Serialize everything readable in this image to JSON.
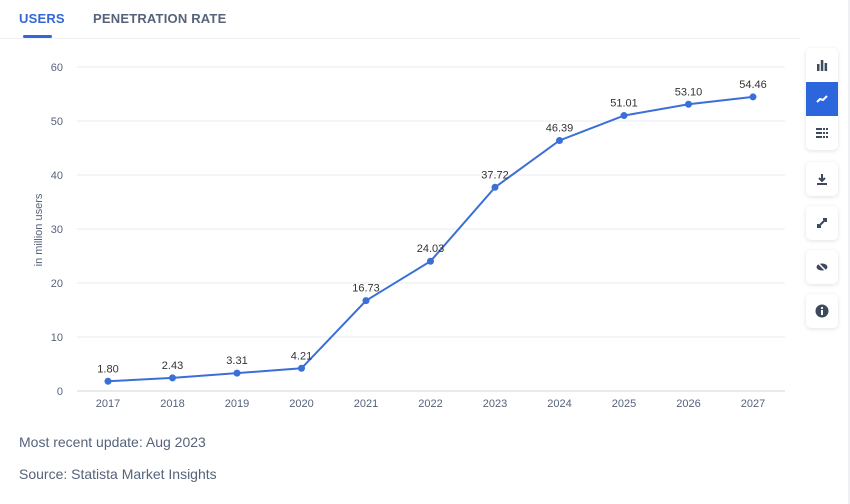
{
  "tabs": [
    {
      "label": "USERS",
      "active": true
    },
    {
      "label": "PENETRATION RATE",
      "active": false
    }
  ],
  "chart_data": {
    "type": "line",
    "categories": [
      "2017",
      "2018",
      "2019",
      "2020",
      "2021",
      "2022",
      "2023",
      "2024",
      "2025",
      "2026",
      "2027"
    ],
    "values": [
      1.8,
      2.43,
      3.31,
      4.21,
      16.73,
      24.03,
      37.72,
      46.39,
      51.01,
      53.1,
      54.46
    ],
    "labels": [
      "1.80",
      "2.43",
      "3.31",
      "4.21",
      "16.73",
      "24.03",
      "37.72",
      "46.39",
      "51.01",
      "53.10",
      "54.46"
    ],
    "ylabel": "in million users",
    "ylim": [
      0,
      60
    ],
    "yticks": [
      "0",
      "10",
      "20",
      "30",
      "40",
      "50",
      "60"
    ],
    "grid": true,
    "color": "#3a6fd8"
  },
  "toolbar": {
    "icons": [
      "bar-chart-icon",
      "line-chart-icon",
      "table-icon",
      "download-icon",
      "expand-icon",
      "hide-icon",
      "info-icon"
    ],
    "active": "line-chart-icon",
    "accent": "#2d66dc"
  },
  "footer": {
    "update": "Most recent update: Aug 2023",
    "source": "Source: Statista Market Insights"
  }
}
